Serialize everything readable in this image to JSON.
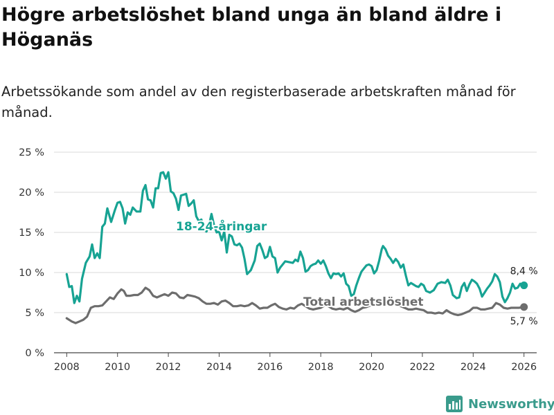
{
  "header": {
    "title": "Högre arbetslöshet bland unga än bland äldre i Höganäs",
    "subtitle": "Arbetssökande som andel av den registerbaserade arbetskraften månad för månad."
  },
  "brand": {
    "name": "Newsworthy",
    "icon": "bar-chart-logo-icon"
  },
  "colors": {
    "youth": "#17a393",
    "total": "#6d6d6d",
    "grid": "#d8d8d8",
    "axis": "#444444",
    "brand": "#3a9b8c"
  },
  "chart_data": {
    "type": "line",
    "title": "Högre arbetslöshet bland unga än bland äldre i Höganäs",
    "subtitle": "Arbetssökande som andel av den registerbaserade arbetskraften månad för månad.",
    "xlabel": "",
    "ylabel": "",
    "xlim": [
      2007.5,
      2026.5
    ],
    "ylim": [
      0,
      25
    ],
    "x_ticks": [
      2008,
      2010,
      2012,
      2014,
      2016,
      2018,
      2020,
      2022,
      2024,
      2026
    ],
    "x_tick_labels": [
      "2008",
      "2010",
      "2012",
      "2014",
      "2016",
      "2018",
      "2020",
      "2022",
      "2024",
      "2026"
    ],
    "y_ticks": [
      0,
      5,
      10,
      15,
      20,
      25
    ],
    "y_tick_labels": [
      "0 %",
      "5 %",
      "10 %",
      "15 %",
      "20 %",
      "25 %"
    ],
    "grid": "horizontal",
    "series": [
      {
        "name": "18-24-åringar",
        "label": "18-24-åringar",
        "end_label": "8,4 %",
        "points": [
          [
            2008.0,
            9.8
          ],
          [
            2008.1,
            8.2
          ],
          [
            2008.2,
            8.3
          ],
          [
            2008.3,
            6.2
          ],
          [
            2008.4,
            7.1
          ],
          [
            2008.5,
            6.4
          ],
          [
            2008.6,
            9.2
          ],
          [
            2008.75,
            11.2
          ],
          [
            2008.9,
            12.0
          ],
          [
            2009.0,
            13.5
          ],
          [
            2009.1,
            11.8
          ],
          [
            2009.2,
            12.4
          ],
          [
            2009.3,
            11.8
          ],
          [
            2009.4,
            15.7
          ],
          [
            2009.5,
            16.1
          ],
          [
            2009.6,
            18.0
          ],
          [
            2009.75,
            16.3
          ],
          [
            2009.9,
            17.8
          ],
          [
            2010.0,
            18.7
          ],
          [
            2010.1,
            18.8
          ],
          [
            2010.2,
            18.0
          ],
          [
            2010.3,
            16.1
          ],
          [
            2010.4,
            17.5
          ],
          [
            2010.5,
            17.2
          ],
          [
            2010.6,
            18.1
          ],
          [
            2010.75,
            17.6
          ],
          [
            2010.9,
            17.6
          ],
          [
            2011.0,
            20.2
          ],
          [
            2011.1,
            20.9
          ],
          [
            2011.2,
            19.1
          ],
          [
            2011.3,
            19.0
          ],
          [
            2011.4,
            18.1
          ],
          [
            2011.5,
            20.5
          ],
          [
            2011.6,
            20.5
          ],
          [
            2011.7,
            22.4
          ],
          [
            2011.8,
            22.5
          ],
          [
            2011.9,
            21.7
          ],
          [
            2012.0,
            22.5
          ],
          [
            2012.1,
            20.1
          ],
          [
            2012.2,
            19.9
          ],
          [
            2012.3,
            19.2
          ],
          [
            2012.4,
            17.8
          ],
          [
            2012.5,
            19.6
          ],
          [
            2012.6,
            19.7
          ],
          [
            2012.7,
            19.8
          ],
          [
            2012.8,
            18.3
          ],
          [
            2012.9,
            18.6
          ],
          [
            2013.0,
            19.0
          ],
          [
            2013.1,
            17.0
          ],
          [
            2013.2,
            16.4
          ],
          [
            2013.3,
            16.6
          ],
          [
            2013.4,
            15.3
          ],
          [
            2013.5,
            15.1
          ],
          [
            2013.6,
            15.9
          ],
          [
            2013.7,
            17.3
          ],
          [
            2013.8,
            15.9
          ],
          [
            2013.9,
            15.0
          ],
          [
            2014.0,
            15.1
          ],
          [
            2014.1,
            14.0
          ],
          [
            2014.2,
            15.1
          ],
          [
            2014.3,
            12.5
          ],
          [
            2014.4,
            14.7
          ],
          [
            2014.5,
            14.5
          ],
          [
            2014.6,
            13.5
          ],
          [
            2014.7,
            13.4
          ],
          [
            2014.8,
            13.6
          ],
          [
            2014.9,
            13.1
          ],
          [
            2015.0,
            11.7
          ],
          [
            2015.1,
            9.8
          ],
          [
            2015.25,
            10.3
          ],
          [
            2015.4,
            11.5
          ],
          [
            2015.5,
            13.3
          ],
          [
            2015.6,
            13.6
          ],
          [
            2015.7,
            12.8
          ],
          [
            2015.8,
            11.8
          ],
          [
            2015.9,
            12.0
          ],
          [
            2016.0,
            13.2
          ],
          [
            2016.1,
            12.0
          ],
          [
            2016.2,
            11.8
          ],
          [
            2016.3,
            10.0
          ],
          [
            2016.4,
            10.6
          ],
          [
            2016.5,
            11.0
          ],
          [
            2016.6,
            11.4
          ],
          [
            2016.75,
            11.3
          ],
          [
            2016.9,
            11.2
          ],
          [
            2017.0,
            11.6
          ],
          [
            2017.1,
            11.4
          ],
          [
            2017.2,
            12.6
          ],
          [
            2017.3,
            11.8
          ],
          [
            2017.4,
            10.1
          ],
          [
            2017.5,
            10.3
          ],
          [
            2017.6,
            10.8
          ],
          [
            2017.7,
            11.0
          ],
          [
            2017.8,
            11.1
          ],
          [
            2017.9,
            11.5
          ],
          [
            2018.0,
            11.1
          ],
          [
            2018.1,
            11.5
          ],
          [
            2018.2,
            10.8
          ],
          [
            2018.3,
            9.9
          ],
          [
            2018.4,
            9.3
          ],
          [
            2018.5,
            9.9
          ],
          [
            2018.6,
            9.8
          ],
          [
            2018.7,
            9.9
          ],
          [
            2018.8,
            9.5
          ],
          [
            2018.9,
            9.9
          ],
          [
            2019.0,
            8.6
          ],
          [
            2019.1,
            8.3
          ],
          [
            2019.2,
            7.1
          ],
          [
            2019.3,
            7.3
          ],
          [
            2019.4,
            8.4
          ],
          [
            2019.5,
            9.3
          ],
          [
            2019.6,
            10.1
          ],
          [
            2019.7,
            10.5
          ],
          [
            2019.8,
            10.9
          ],
          [
            2019.9,
            11.0
          ],
          [
            2020.0,
            10.8
          ],
          [
            2020.1,
            9.9
          ],
          [
            2020.2,
            10.3
          ],
          [
            2020.3,
            11.5
          ],
          [
            2020.4,
            12.9
          ],
          [
            2020.45,
            13.3
          ],
          [
            2020.55,
            12.9
          ],
          [
            2020.65,
            12.1
          ],
          [
            2020.75,
            11.7
          ],
          [
            2020.85,
            11.2
          ],
          [
            2020.95,
            11.7
          ],
          [
            2021.05,
            11.3
          ],
          [
            2021.15,
            10.6
          ],
          [
            2021.25,
            11.0
          ],
          [
            2021.35,
            9.6
          ],
          [
            2021.45,
            8.4
          ],
          [
            2021.55,
            8.7
          ],
          [
            2021.65,
            8.5
          ],
          [
            2021.75,
            8.3
          ],
          [
            2021.85,
            8.2
          ],
          [
            2021.95,
            8.6
          ],
          [
            2022.05,
            8.4
          ],
          [
            2022.15,
            7.7
          ],
          [
            2022.3,
            7.5
          ],
          [
            2022.45,
            7.8
          ],
          [
            2022.6,
            8.6
          ],
          [
            2022.75,
            8.8
          ],
          [
            2022.9,
            8.7
          ],
          [
            2023.0,
            9.1
          ],
          [
            2023.1,
            8.4
          ],
          [
            2023.2,
            7.2
          ],
          [
            2023.35,
            6.8
          ],
          [
            2023.45,
            6.9
          ],
          [
            2023.55,
            8.2
          ],
          [
            2023.65,
            8.7
          ],
          [
            2023.75,
            7.7
          ],
          [
            2023.85,
            8.5
          ],
          [
            2023.95,
            9.1
          ],
          [
            2024.05,
            8.9
          ],
          [
            2024.15,
            8.6
          ],
          [
            2024.25,
            8.0
          ],
          [
            2024.35,
            7.0
          ],
          [
            2024.45,
            7.5
          ],
          [
            2024.55,
            8.0
          ],
          [
            2024.65,
            8.4
          ],
          [
            2024.75,
            8.9
          ],
          [
            2024.85,
            9.8
          ],
          [
            2024.95,
            9.5
          ],
          [
            2025.05,
            8.8
          ],
          [
            2025.15,
            7.0
          ],
          [
            2025.25,
            6.3
          ],
          [
            2025.35,
            6.8
          ],
          [
            2025.45,
            7.5
          ],
          [
            2025.55,
            8.6
          ],
          [
            2025.65,
            8.0
          ],
          [
            2025.75,
            8.1
          ],
          [
            2025.85,
            8.6
          ],
          [
            2026.0,
            8.4
          ]
        ]
      },
      {
        "name": "Total arbetslöshet",
        "label": "Total arbetslöshet",
        "end_label": "5,7 %",
        "points": [
          [
            2008.0,
            4.3
          ],
          [
            2008.2,
            3.9
          ],
          [
            2008.35,
            3.7
          ],
          [
            2008.5,
            3.9
          ],
          [
            2008.65,
            4.1
          ],
          [
            2008.8,
            4.5
          ],
          [
            2008.95,
            5.6
          ],
          [
            2009.1,
            5.8
          ],
          [
            2009.25,
            5.8
          ],
          [
            2009.4,
            5.9
          ],
          [
            2009.55,
            6.4
          ],
          [
            2009.7,
            6.9
          ],
          [
            2009.85,
            6.7
          ],
          [
            2010.0,
            7.4
          ],
          [
            2010.15,
            7.9
          ],
          [
            2010.25,
            7.7
          ],
          [
            2010.35,
            7.1
          ],
          [
            2010.5,
            7.1
          ],
          [
            2010.65,
            7.2
          ],
          [
            2010.8,
            7.2
          ],
          [
            2010.95,
            7.5
          ],
          [
            2011.1,
            8.1
          ],
          [
            2011.25,
            7.8
          ],
          [
            2011.4,
            7.1
          ],
          [
            2011.55,
            6.9
          ],
          [
            2011.7,
            7.1
          ],
          [
            2011.85,
            7.3
          ],
          [
            2012.0,
            7.1
          ],
          [
            2012.15,
            7.5
          ],
          [
            2012.3,
            7.4
          ],
          [
            2012.45,
            6.9
          ],
          [
            2012.6,
            6.8
          ],
          [
            2012.75,
            7.2
          ],
          [
            2012.9,
            7.1
          ],
          [
            2013.05,
            7.0
          ],
          [
            2013.2,
            6.8
          ],
          [
            2013.35,
            6.4
          ],
          [
            2013.5,
            6.1
          ],
          [
            2013.65,
            6.1
          ],
          [
            2013.8,
            6.2
          ],
          [
            2013.95,
            6.0
          ],
          [
            2014.1,
            6.4
          ],
          [
            2014.25,
            6.5
          ],
          [
            2014.4,
            6.2
          ],
          [
            2014.55,
            5.8
          ],
          [
            2014.7,
            5.8
          ],
          [
            2014.85,
            5.9
          ],
          [
            2015.0,
            5.8
          ],
          [
            2015.15,
            5.9
          ],
          [
            2015.3,
            6.2
          ],
          [
            2015.45,
            5.9
          ],
          [
            2015.6,
            5.5
          ],
          [
            2015.75,
            5.6
          ],
          [
            2015.9,
            5.6
          ],
          [
            2016.05,
            5.9
          ],
          [
            2016.2,
            6.1
          ],
          [
            2016.35,
            5.7
          ],
          [
            2016.5,
            5.5
          ],
          [
            2016.65,
            5.4
          ],
          [
            2016.8,
            5.6
          ],
          [
            2016.95,
            5.5
          ],
          [
            2017.1,
            5.9
          ],
          [
            2017.25,
            6.1
          ],
          [
            2017.4,
            5.8
          ],
          [
            2017.55,
            5.5
          ],
          [
            2017.7,
            5.4
          ],
          [
            2017.85,
            5.5
          ],
          [
            2018.0,
            5.6
          ],
          [
            2018.15,
            5.9
          ],
          [
            2018.3,
            5.8
          ],
          [
            2018.45,
            5.5
          ],
          [
            2018.6,
            5.4
          ],
          [
            2018.75,
            5.5
          ],
          [
            2018.9,
            5.4
          ],
          [
            2019.05,
            5.6
          ],
          [
            2019.2,
            5.3
          ],
          [
            2019.35,
            5.1
          ],
          [
            2019.5,
            5.3
          ],
          [
            2019.65,
            5.6
          ],
          [
            2019.8,
            5.7
          ],
          [
            2019.95,
            5.9
          ],
          [
            2020.1,
            6.0
          ],
          [
            2020.25,
            6.3
          ],
          [
            2020.4,
            6.6
          ],
          [
            2020.55,
            6.5
          ],
          [
            2020.7,
            6.3
          ],
          [
            2020.85,
            6.0
          ],
          [
            2021.0,
            5.9
          ],
          [
            2021.15,
            5.8
          ],
          [
            2021.3,
            5.6
          ],
          [
            2021.45,
            5.4
          ],
          [
            2021.6,
            5.4
          ],
          [
            2021.75,
            5.5
          ],
          [
            2021.9,
            5.4
          ],
          [
            2022.05,
            5.3
          ],
          [
            2022.2,
            5.0
          ],
          [
            2022.35,
            5.0
          ],
          [
            2022.5,
            4.9
          ],
          [
            2022.65,
            5.0
          ],
          [
            2022.8,
            4.9
          ],
          [
            2022.95,
            5.3
          ],
          [
            2023.1,
            5.0
          ],
          [
            2023.25,
            4.8
          ],
          [
            2023.4,
            4.7
          ],
          [
            2023.55,
            4.8
          ],
          [
            2023.7,
            5.0
          ],
          [
            2023.85,
            5.2
          ],
          [
            2024.0,
            5.6
          ],
          [
            2024.15,
            5.6
          ],
          [
            2024.3,
            5.4
          ],
          [
            2024.45,
            5.4
          ],
          [
            2024.6,
            5.5
          ],
          [
            2024.75,
            5.6
          ],
          [
            2024.9,
            6.2
          ],
          [
            2025.05,
            6.0
          ],
          [
            2025.2,
            5.6
          ],
          [
            2025.35,
            5.5
          ],
          [
            2025.5,
            5.6
          ],
          [
            2025.65,
            5.6
          ],
          [
            2025.8,
            5.6
          ],
          [
            2026.0,
            5.7
          ]
        ]
      }
    ]
  }
}
